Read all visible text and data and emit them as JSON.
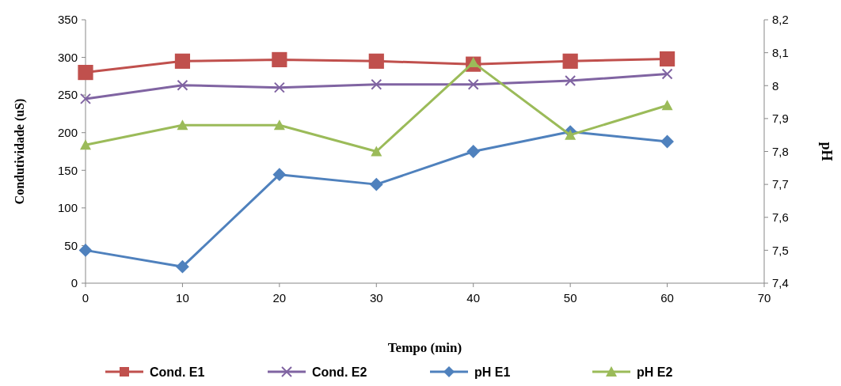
{
  "chart_data": {
    "type": "line",
    "xlabel": "Tempo (min)",
    "ylabel": "Condutividade (uS)",
    "y2label": "pH",
    "x": [
      0,
      10,
      20,
      30,
      40,
      50,
      60
    ],
    "xlim": [
      0,
      70
    ],
    "xticks": [
      0,
      10,
      20,
      30,
      40,
      50,
      60,
      70
    ],
    "ylim": [
      0,
      350
    ],
    "yticks": [
      0,
      50,
      100,
      150,
      200,
      250,
      300,
      350
    ],
    "y2lim": [
      7.4,
      8.2
    ],
    "y2ticks": [
      {
        "value": 7.4,
        "label": "7,4"
      },
      {
        "value": 7.5,
        "label": "7,5"
      },
      {
        "value": 7.6,
        "label": "7,6"
      },
      {
        "value": 7.7,
        "label": "7,7"
      },
      {
        "value": 7.8,
        "label": "7,8"
      },
      {
        "value": 7.9,
        "label": "7,9"
      },
      {
        "value": 8,
        "label": "8"
      },
      {
        "value": 8.1,
        "label": "8,1"
      },
      {
        "value": 8.2,
        "label": "8,2"
      }
    ],
    "grid": false,
    "legend": "bottom",
    "line_style": "solid",
    "series": [
      {
        "name": "Cond. E1",
        "color": "#c0504d",
        "marker": "square",
        "values": [
          280,
          295,
          297,
          295,
          291,
          295,
          298
        ]
      },
      {
        "name": "Cond. E2",
        "color": "#8064a2",
        "marker": "cross",
        "values": [
          245,
          263,
          260,
          264,
          264,
          269,
          278
        ]
      },
      {
        "name": "pH E1",
        "color": "#4f81bd",
        "marker": "diamond",
        "axis": "y2",
        "values": [
          7.5,
          7.45,
          7.73,
          7.7,
          7.8,
          7.86,
          7.83
        ]
      },
      {
        "name": "pH E2",
        "color": "#9bbb59",
        "marker": "triangle",
        "axis": "y2",
        "values": [
          7.82,
          7.88,
          7.88,
          7.8,
          8.07,
          7.85,
          7.94
        ]
      }
    ]
  }
}
